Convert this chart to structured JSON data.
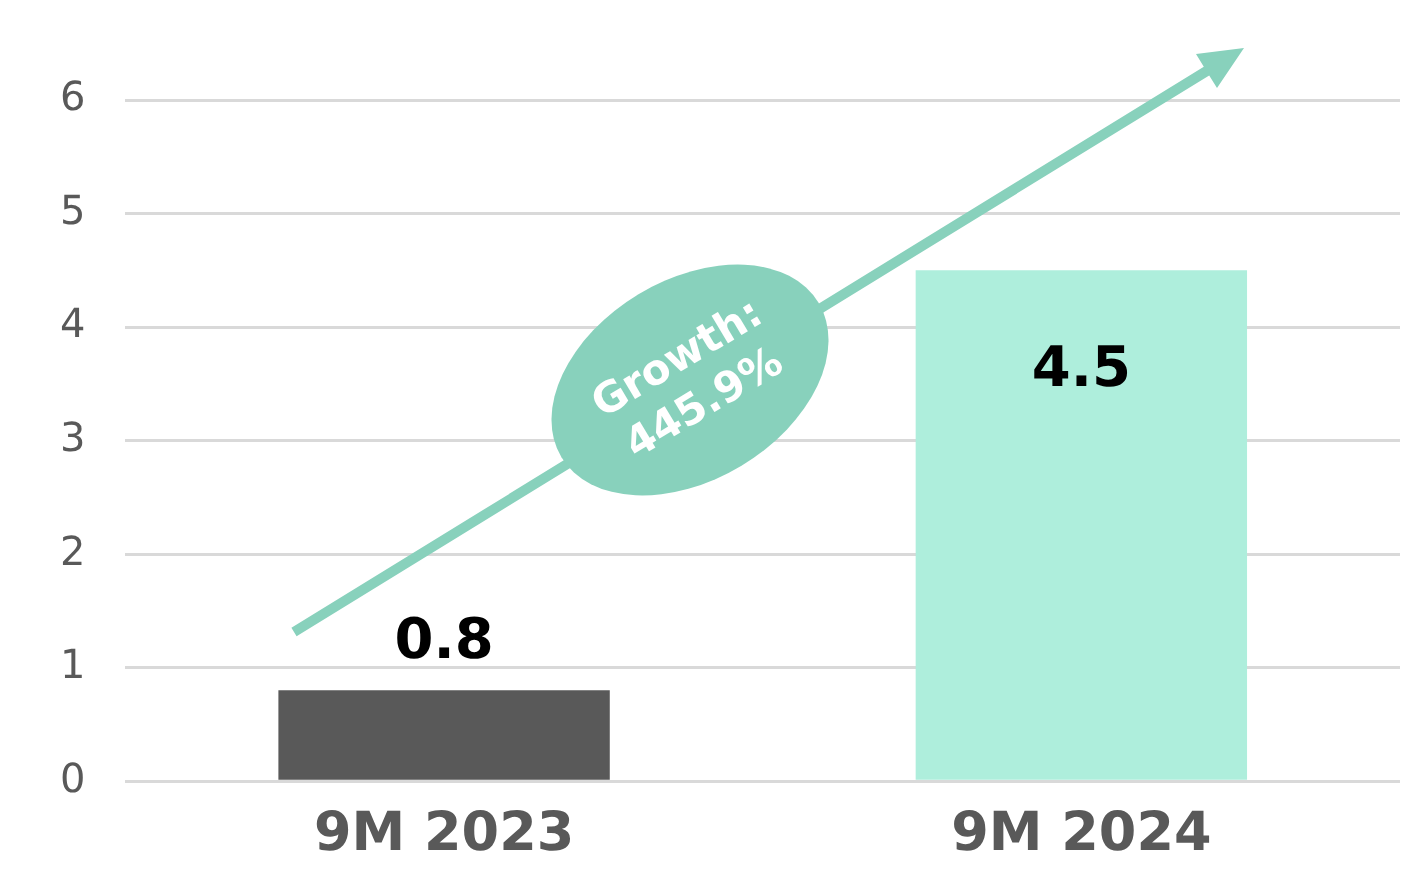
{
  "chart_data": {
    "type": "bar",
    "categories": [
      "9M 2023",
      "9M 2024"
    ],
    "values": [
      0.8,
      4.5
    ],
    "colors": [
      "#595959",
      "#aeeedc"
    ],
    "ylim": [
      0,
      6
    ],
    "yticks": [
      0,
      1,
      2,
      3,
      4,
      5,
      6
    ],
    "grid": "y",
    "legend": false,
    "data_labels": true,
    "annotations": [
      "Growth: 445.9%"
    ]
  }
}
